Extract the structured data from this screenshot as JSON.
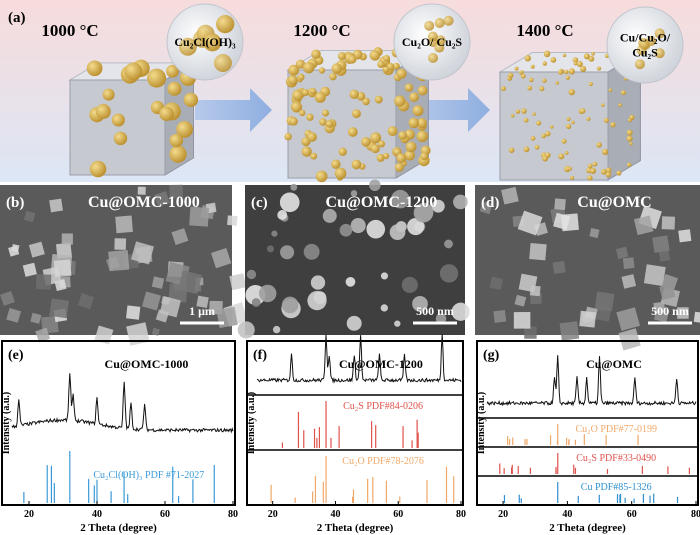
{
  "panel_a": {
    "label": "(a)",
    "stages": [
      {
        "temperature": "1000 °C",
        "product": [
          "Cu₂Cl(OH)₃"
        ]
      },
      {
        "temperature": "1200 °C",
        "product": [
          "Cu₂O/ Cu₂S"
        ]
      },
      {
        "temperature": "1400 °C",
        "product": [
          "Cu/Cu₂O/",
          "Cu₂S"
        ]
      }
    ]
  },
  "sem": [
    {
      "label": "(b)",
      "sample": "Cu@OMC-1000",
      "scale_bar": "1 μm"
    },
    {
      "label": "(c)",
      "sample": "Cu@OMC-1200",
      "scale_bar": "500 nm"
    },
    {
      "label": "(d)",
      "sample": "Cu@OMC",
      "scale_bar": "500 nm"
    }
  ],
  "xrd": [
    {
      "label": "(e)",
      "sample": "Cu@OMC-1000",
      "references": [
        "Cu₂Cl(OH)₃ PDF #71-2027"
      ],
      "y_label": "Intensity (a.u.)",
      "x_label": "2 Theta (degree)",
      "xticks": [
        20,
        40,
        60,
        80
      ]
    },
    {
      "label": "(f)",
      "sample": "Cu@OMC-1200",
      "references": [
        "Cu₂S PDF#84-0206",
        "Cu₂O PDF#78-2076"
      ],
      "y_label": "Intensity (a.u.)",
      "x_label": "2 Theta (degree)",
      "xticks": [
        20,
        40,
        60,
        80
      ]
    },
    {
      "label": "(g)",
      "sample": "Cu@OMC",
      "references": [
        "Cu₂O PDF#77-0199",
        "Cu₂S PDF#33-0490",
        "Cu PDF#85-1326"
      ],
      "y_label": "Intensity (a.u.)",
      "x_label": "2 Theta (degree)",
      "xticks": [
        20,
        40,
        60,
        80
      ]
    }
  ]
}
